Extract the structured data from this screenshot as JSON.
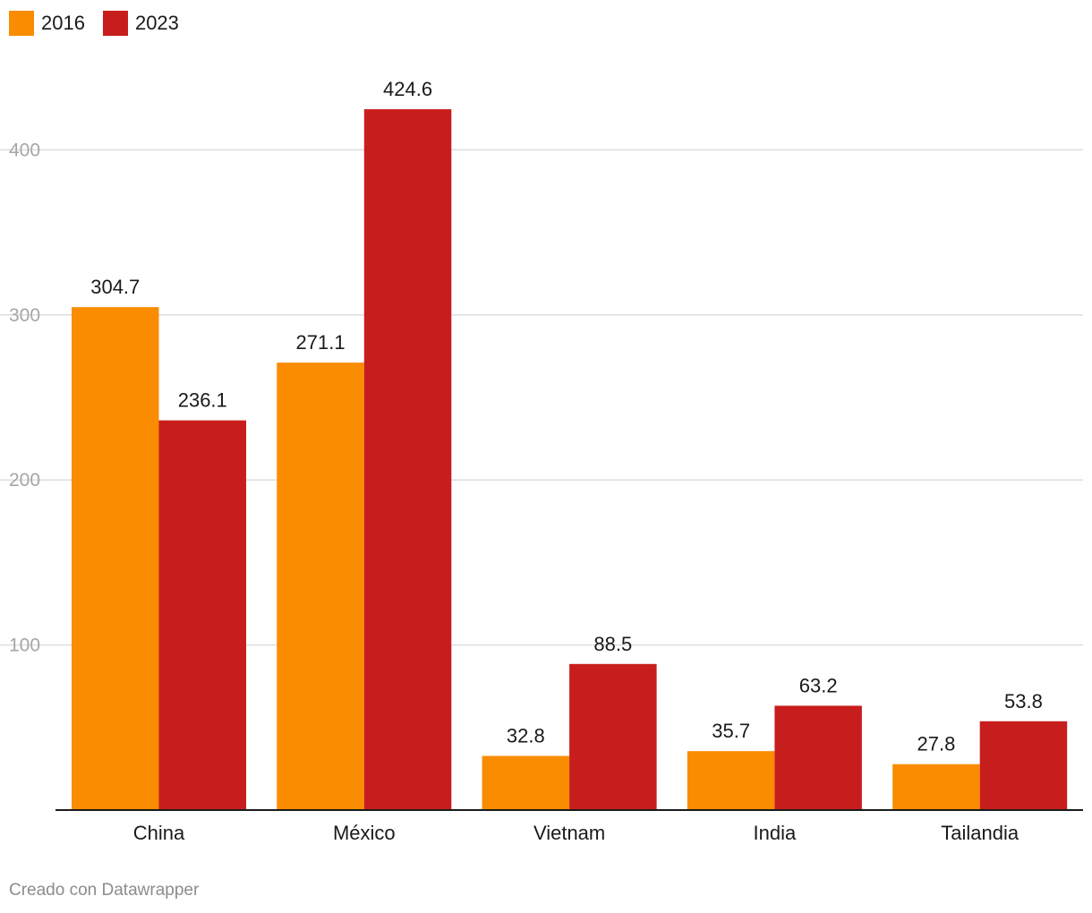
{
  "legend": {
    "items": [
      {
        "label": "2016",
        "color": "#f98c00"
      },
      {
        "label": "2023",
        "color": "#c71e1d"
      }
    ]
  },
  "footer": {
    "credit": "Creado con Datawrapper"
  },
  "chart_data": {
    "type": "bar",
    "categories": [
      "China",
      "México",
      "Vietnam",
      "India",
      "Tailandia"
    ],
    "series": [
      {
        "name": "2016",
        "color": "#f98c00",
        "values": [
          304.7,
          271.1,
          32.8,
          35.7,
          27.8
        ]
      },
      {
        "name": "2023",
        "color": "#c71e1d",
        "values": [
          236.1,
          424.6,
          88.5,
          63.2,
          53.8
        ]
      }
    ],
    "yticks": [
      100,
      200,
      300,
      400
    ],
    "ylim": [
      0,
      400
    ],
    "grid": true,
    "legend_position": "top-left",
    "value_labels": true
  }
}
